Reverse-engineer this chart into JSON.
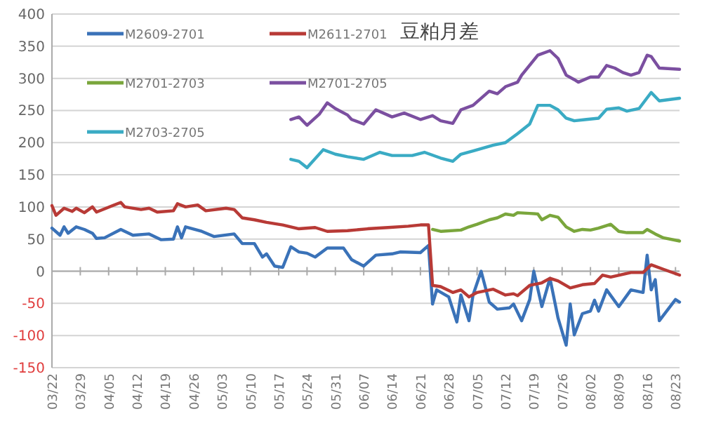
{
  "chart_data": {
    "type": "line",
    "title": "豆粕月差",
    "xlim": [
      "--03-22",
      "--08-24"
    ],
    "xticks": [
      {
        "value": "--03-22",
        "label": "03/22"
      },
      {
        "value": "--03-29",
        "label": "03/29"
      },
      {
        "value": "--04-05",
        "label": "04/05"
      },
      {
        "value": "--04-12",
        "label": "04/12"
      },
      {
        "value": "--04-19",
        "label": "04/19"
      },
      {
        "value": "--04-26",
        "label": "04/26"
      },
      {
        "value": "--05-03",
        "label": "05/03"
      },
      {
        "value": "--05-10",
        "label": "05/10"
      },
      {
        "value": "--05-17",
        "label": "05/17"
      },
      {
        "value": "--05-24",
        "label": "05/24"
      },
      {
        "value": "--05-31",
        "label": "05/31"
      },
      {
        "value": "--06-07",
        "label": "06/07"
      },
      {
        "value": "--06-14",
        "label": "06/14"
      },
      {
        "value": "--06-21",
        "label": "06/21"
      },
      {
        "value": "--06-28",
        "label": "06/28"
      },
      {
        "value": "--07-05",
        "label": "07/05"
      },
      {
        "value": "--07-12",
        "label": "07/12"
      },
      {
        "value": "--07-19",
        "label": "07/19"
      },
      {
        "value": "--07-26",
        "label": "07/26"
      },
      {
        "value": "--08-02",
        "label": "08/02"
      },
      {
        "value": "--08-09",
        "label": "08/09"
      },
      {
        "value": "--08-16",
        "label": "08/16"
      },
      {
        "value": "--08-23",
        "label": "08/23"
      }
    ],
    "ylim": [
      -150,
      400
    ],
    "yticks": [
      -150,
      -100,
      -50,
      0,
      50,
      100,
      150,
      200,
      250,
      300,
      350,
      400
    ],
    "grid": "y",
    "legend": "top left",
    "marker": "none",
    "line_style": "solid",
    "series": [
      {
        "name": "M2609-2701",
        "color": "#3a72b8",
        "x": [
          "--03-22",
          "--03-24",
          "--03-25",
          "--03-26",
          "--03-28",
          "--03-30",
          "--04-01",
          "--04-02",
          "--04-04",
          "--04-08",
          "--04-11",
          "--04-15",
          "--04-18",
          "--04-21",
          "--04-22",
          "--04-23",
          "--04-24",
          "--04-28",
          "--05-01",
          "--05-06",
          "--05-08",
          "--05-11",
          "--05-13",
          "--05-14",
          "--05-16",
          "--05-18",
          "--05-20",
          "--05-22",
          "--05-24",
          "--05-26",
          "--05-29",
          "--06-02",
          "--06-04",
          "--06-07",
          "--06-10",
          "--06-14",
          "--06-16",
          "--06-21",
          "--06-23",
          "--06-24",
          "--06-25",
          "--06-28",
          "--06-30",
          "--07-01",
          "--07-03",
          "--07-04",
          "--07-06",
          "--07-08",
          "--07-10",
          "--07-13",
          "--07-14",
          "--07-16",
          "--07-18",
          "--07-19",
          "--07-21",
          "--07-23",
          "--07-25",
          "--07-27",
          "--07-28",
          "--07-29",
          "--07-31",
          "--08-02",
          "--08-03",
          "--08-04",
          "--08-06",
          "--08-09",
          "--08-12",
          "--08-15",
          "--08-16",
          "--08-17",
          "--08-18",
          "--08-19",
          "--08-23",
          "--08-24"
        ],
        "values": [
          67,
          56,
          69,
          59,
          69,
          65,
          59,
          51,
          52,
          65,
          56,
          58,
          49,
          50,
          69,
          52,
          69,
          62,
          54,
          58,
          43,
          43,
          22,
          27,
          8,
          6,
          38,
          30,
          28,
          22,
          36,
          36,
          18,
          8,
          25,
          27,
          30,
          29,
          40,
          -51,
          -29,
          -40,
          -79,
          -37,
          -77,
          -37,
          0,
          -48,
          -59,
          -57,
          -51,
          -77,
          -44,
          0,
          -55,
          -11,
          -73,
          -115,
          -51,
          -99,
          -66,
          -62,
          -45,
          -62,
          -29,
          -55,
          -29,
          -33,
          25,
          -29,
          -13,
          -77,
          -44,
          -48
        ]
      },
      {
        "name": "M2611-2701",
        "color": "#b83a36",
        "x": [
          "--03-22",
          "--03-23",
          "--03-25",
          "--03-27",
          "--03-28",
          "--03-30",
          "--04-01",
          "--04-02",
          "--04-06",
          "--04-08",
          "--04-09",
          "--04-13",
          "--04-15",
          "--04-17",
          "--04-21",
          "--04-22",
          "--04-24",
          "--04-27",
          "--04-29",
          "--05-04",
          "--05-06",
          "--05-08",
          "--05-11",
          "--05-14",
          "--05-18",
          "--05-22",
          "--05-26",
          "--05-29",
          "--06-03",
          "--06-08",
          "--06-13",
          "--06-18",
          "--06-21",
          "--06-23",
          "--06-24",
          "--06-26",
          "--06-29",
          "--07-01",
          "--07-03",
          "--07-05",
          "--07-09",
          "--07-12",
          "--07-14",
          "--07-15",
          "--07-18",
          "--07-21",
          "--07-23",
          "--07-25",
          "--07-28",
          "--07-31",
          "--08-03",
          "--08-05",
          "--08-07",
          "--08-12",
          "--08-15",
          "--08-17",
          "--08-20",
          "--08-24"
        ],
        "values": [
          102,
          87,
          98,
          93,
          98,
          91,
          100,
          92,
          102,
          107,
          100,
          96,
          98,
          92,
          94,
          105,
          100,
          103,
          94,
          98,
          96,
          83,
          80,
          76,
          72,
          66,
          68,
          62,
          63,
          66,
          68,
          70,
          72,
          72,
          -22,
          -24,
          -33,
          -29,
          -40,
          -33,
          -28,
          -37,
          -35,
          -38,
          -22,
          -18,
          -11,
          -15,
          -26,
          -21,
          -19,
          -6,
          -9,
          -2,
          -2,
          10,
          3,
          -6
        ]
      },
      {
        "name": "M2701-2703",
        "color": "#7aa63c",
        "x": [
          "--06-24",
          "--06-26",
          "--07-01",
          "--07-03",
          "--07-05",
          "--07-08",
          "--07-10",
          "--07-12",
          "--07-14",
          "--07-15",
          "--07-18",
          "--07-20",
          "--07-21",
          "--07-23",
          "--07-25",
          "--07-27",
          "--07-29",
          "--07-31",
          "--08-02",
          "--08-04",
          "--08-07",
          "--08-09",
          "--08-11",
          "--08-13",
          "--08-15",
          "--08-16",
          "--08-18",
          "--08-20",
          "--08-24"
        ],
        "values": [
          65,
          62,
          64,
          69,
          73,
          80,
          83,
          89,
          87,
          91,
          90,
          89,
          80,
          87,
          84,
          69,
          62,
          65,
          64,
          67,
          73,
          62,
          60,
          60,
          60,
          65,
          58,
          52,
          47
        ]
      },
      {
        "name": "M2701-2705",
        "color": "#7b4fa0",
        "x": [
          "--05-20",
          "--05-22",
          "--05-24",
          "--05-27",
          "--05-29",
          "--05-31",
          "--06-03",
          "--06-04",
          "--06-07",
          "--06-10",
          "--06-14",
          "--06-17",
          "--06-21",
          "--06-24",
          "--06-26",
          "--06-29",
          "--07-01",
          "--07-04",
          "--07-08",
          "--07-10",
          "--07-12",
          "--07-15",
          "--07-16",
          "--07-20",
          "--07-23",
          "--07-25",
          "--07-27",
          "--07-29",
          "--07-30",
          "--08-02",
          "--08-04",
          "--08-06",
          "--08-08",
          "--08-10",
          "--08-12",
          "--08-14",
          "--08-16",
          "--08-17",
          "--08-19",
          "--08-24"
        ],
        "values": [
          236,
          240,
          227,
          244,
          262,
          253,
          243,
          236,
          229,
          251,
          240,
          246,
          236,
          242,
          234,
          230,
          251,
          258,
          280,
          276,
          287,
          294,
          305,
          336,
          343,
          331,
          305,
          298,
          294,
          302,
          302,
          320,
          316,
          309,
          305,
          309,
          336,
          334,
          316,
          314
        ]
      },
      {
        "name": "M2703-2705",
        "color": "#3aabc4",
        "x": [
          "--05-20",
          "--05-22",
          "--05-24",
          "--05-28",
          "--05-31",
          "--06-03",
          "--06-07",
          "--06-11",
          "--06-14",
          "--06-19",
          "--06-22",
          "--06-26",
          "--06-29",
          "--07-01",
          "--07-04",
          "--07-09",
          "--07-12",
          "--07-15",
          "--07-18",
          "--07-20",
          "--07-23",
          "--07-25",
          "--07-27",
          "--07-29",
          "--08-01",
          "--08-04",
          "--08-06",
          "--08-09",
          "--08-11",
          "--08-14",
          "--08-17",
          "--08-19",
          "--08-24"
        ],
        "values": [
          174,
          171,
          161,
          189,
          182,
          178,
          174,
          185,
          180,
          180,
          185,
          176,
          171,
          182,
          187,
          196,
          200,
          214,
          229,
          258,
          258,
          251,
          238,
          234,
          236,
          238,
          252,
          254,
          249,
          253,
          278,
          265,
          269
        ]
      }
    ]
  }
}
